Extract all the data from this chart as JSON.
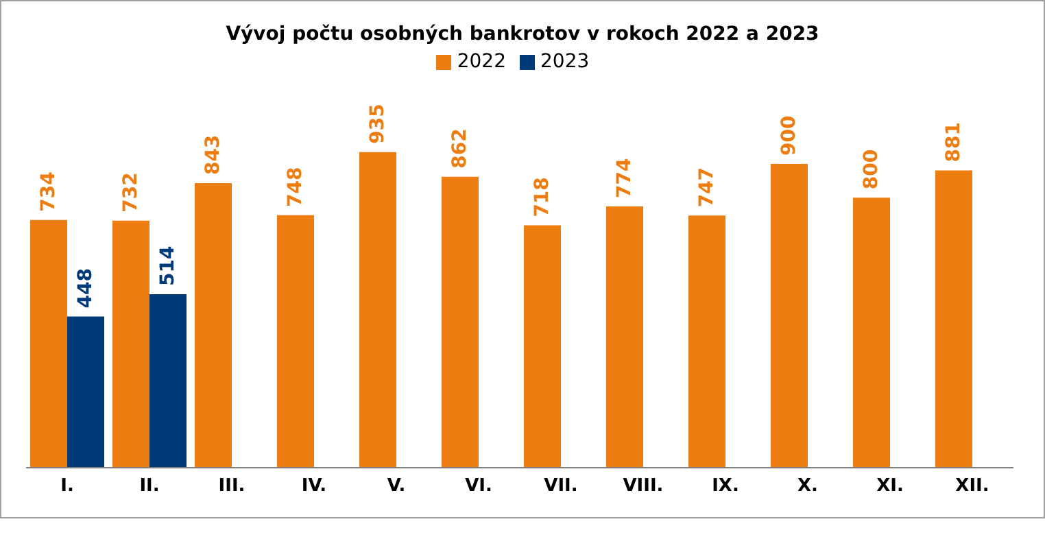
{
  "chart_data": {
    "type": "bar",
    "title": "Vývoj počtu osobných bankrotov v rokoch 2022 a 2023",
    "categories": [
      "I.",
      "II.",
      "III.",
      "IV.",
      "V.",
      "VI.",
      "VII.",
      "VIII.",
      "IX.",
      "X.",
      "XI.",
      "XII."
    ],
    "series": [
      {
        "name": "2022",
        "color": "#ee7d11",
        "values": [
          734,
          732,
          843,
          748,
          935,
          862,
          718,
          774,
          747,
          900,
          800,
          881
        ]
      },
      {
        "name": "2023",
        "color": "#003a78",
        "values": [
          448,
          514,
          null,
          null,
          null,
          null,
          null,
          null,
          null,
          null,
          null,
          null
        ]
      }
    ],
    "data_labels": true,
    "legend": "top",
    "grid": false
  }
}
